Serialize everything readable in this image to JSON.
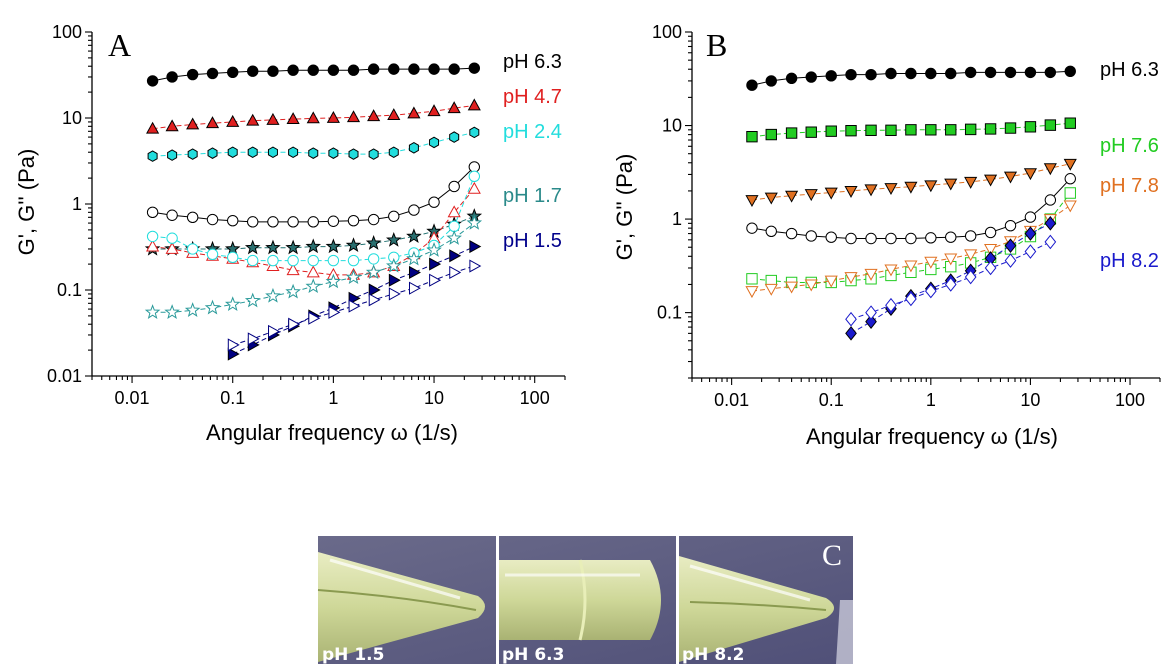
{
  "panels": [
    {
      "label": "A",
      "xlabel": "Angular frequency ω (1/s)",
      "ylabel": "G', G'' (Pa)"
    },
    {
      "label": "B",
      "xlabel": "Angular frequency ω (1/s)",
      "ylabel": "G', G'' (Pa)"
    }
  ],
  "chart_data": [
    {
      "type": "scatter",
      "panel": "A",
      "xlabel": "Angular frequency ω (1/s)",
      "ylabel": "G', G'' (Pa)",
      "xscale": "log",
      "yscale": "log",
      "xlim": [
        0.004,
        200
      ],
      "ylim": [
        0.01,
        100
      ],
      "xticks": [
        "0.01",
        "0.1",
        "1",
        "10",
        "100"
      ],
      "yticks": [
        "0.01",
        "0.1",
        "1",
        "10",
        "100"
      ],
      "grid": false,
      "legend": "series labels at right end of each curve",
      "series": [
        {
          "name": "pH 6.3",
          "color": "#000000",
          "marker": "circle",
          "filled": true,
          "label_color": "#000000",
          "x": [
            0.016,
            0.025,
            0.04,
            0.063,
            0.1,
            0.158,
            0.251,
            0.398,
            0.631,
            1.0,
            1.585,
            2.512,
            3.981,
            6.31,
            10.0,
            15.85,
            25.12
          ],
          "y": [
            27,
            30,
            32,
            33,
            34,
            35,
            35,
            36,
            36,
            36,
            36,
            37,
            37,
            37,
            37,
            37,
            38
          ]
        },
        {
          "name": "pH 4.7",
          "color": "#e02020",
          "marker": "triangle-up",
          "filled": true,
          "label_color": "#e02020",
          "x": [
            0.016,
            0.025,
            0.04,
            0.063,
            0.1,
            0.158,
            0.251,
            0.398,
            0.631,
            1.0,
            1.585,
            2.512,
            3.981,
            6.31,
            10.0,
            15.85,
            25.12
          ],
          "y": [
            7.5,
            8.0,
            8.4,
            8.7,
            9.0,
            9.3,
            9.5,
            9.7,
            9.9,
            10.0,
            10.2,
            10.5,
            10.8,
            11.3,
            12.0,
            13.0,
            14.0
          ]
        },
        {
          "name": "pH 2.4",
          "color": "#22dddd",
          "marker": "hexagon",
          "filled": true,
          "label_color": "#22dddd",
          "x": [
            0.016,
            0.025,
            0.04,
            0.063,
            0.1,
            0.158,
            0.251,
            0.398,
            0.631,
            1.0,
            1.585,
            2.512,
            3.981,
            6.31,
            10.0,
            15.85,
            25.12
          ],
          "y": [
            3.6,
            3.7,
            3.8,
            3.9,
            4.0,
            4.0,
            4.0,
            4.0,
            3.9,
            3.9,
            3.8,
            3.8,
            4.0,
            4.5,
            5.2,
            6.0,
            6.8
          ]
        },
        {
          "name": "pH 6.3 G''",
          "color": "#000000",
          "marker": "circle",
          "filled": false,
          "x": [
            0.016,
            0.025,
            0.04,
            0.063,
            0.1,
            0.158,
            0.251,
            0.398,
            0.631,
            1.0,
            1.585,
            2.512,
            3.981,
            6.31,
            10.0,
            15.85,
            25.12
          ],
          "y": [
            0.8,
            0.74,
            0.7,
            0.66,
            0.64,
            0.62,
            0.62,
            0.62,
            0.62,
            0.63,
            0.64,
            0.66,
            0.72,
            0.85,
            1.05,
            1.6,
            2.7
          ]
        },
        {
          "name": "pH 1.7",
          "color": "#207070",
          "fill": "#2a6f6f",
          "marker": "star",
          "filled": true,
          "label_color": "#2a8a8a",
          "x": [
            0.016,
            0.025,
            0.04,
            0.063,
            0.1,
            0.158,
            0.251,
            0.398,
            0.631,
            1.0,
            1.585,
            2.512,
            3.981,
            6.31,
            10.0,
            15.85,
            25.12
          ],
          "y": [
            0.3,
            0.3,
            0.3,
            0.3,
            0.3,
            0.31,
            0.31,
            0.31,
            0.32,
            0.32,
            0.33,
            0.35,
            0.38,
            0.42,
            0.48,
            0.58,
            0.72
          ]
        },
        {
          "name": "pH 1.5",
          "color": "#000080",
          "marker": "triangle-right",
          "filled": true,
          "label_color": "#00008b",
          "x": [
            0.1,
            0.158,
            0.251,
            0.398,
            0.631,
            1.0,
            1.585,
            2.512,
            3.981,
            6.31,
            10.0,
            15.85,
            25.12
          ],
          "y": [
            0.018,
            0.023,
            0.03,
            0.038,
            0.05,
            0.062,
            0.08,
            0.1,
            0.13,
            0.16,
            0.2,
            0.25,
            0.32
          ]
        },
        {
          "name": "pH 4.7 G''",
          "color": "#e02020",
          "marker": "triangle-up",
          "filled": false,
          "x": [
            0.016,
            0.025,
            0.04,
            0.063,
            0.1,
            0.158,
            0.251,
            0.398,
            0.631,
            1.0,
            1.585,
            2.512,
            3.981,
            6.31,
            10.0,
            15.85,
            25.12
          ],
          "y": [
            0.32,
            0.3,
            0.27,
            0.25,
            0.23,
            0.21,
            0.19,
            0.17,
            0.16,
            0.15,
            0.15,
            0.16,
            0.19,
            0.26,
            0.4,
            0.8,
            1.5
          ]
        },
        {
          "name": "pH 2.4 G''",
          "color": "#22dddd",
          "marker": "circle",
          "filled": false,
          "x": [
            0.016,
            0.025,
            0.04,
            0.063,
            0.1,
            0.158,
            0.251,
            0.398,
            0.631,
            1.0,
            1.585,
            2.512,
            3.981,
            6.31,
            10.0,
            15.85,
            25.12
          ],
          "y": [
            0.42,
            0.4,
            0.3,
            0.26,
            0.24,
            0.22,
            0.22,
            0.22,
            0.22,
            0.22,
            0.22,
            0.23,
            0.24,
            0.27,
            0.33,
            0.55,
            2.1
          ]
        },
        {
          "name": "pH 1.7 G''",
          "color": "#2a9a9a",
          "marker": "star",
          "filled": false,
          "x": [
            0.016,
            0.025,
            0.04,
            0.063,
            0.1,
            0.158,
            0.251,
            0.398,
            0.631,
            1.0,
            1.585,
            2.512,
            3.981,
            6.31,
            10.0,
            15.85,
            25.12
          ],
          "y": [
            0.055,
            0.055,
            0.058,
            0.062,
            0.068,
            0.075,
            0.085,
            0.095,
            0.11,
            0.125,
            0.14,
            0.16,
            0.19,
            0.23,
            0.29,
            0.4,
            0.6
          ]
        },
        {
          "name": "pH 1.5 G''",
          "color": "#000080",
          "marker": "triangle-right",
          "filled": false,
          "x": [
            0.1,
            0.158,
            0.251,
            0.398,
            0.631,
            1.0,
            1.585,
            2.512,
            3.981,
            6.31,
            10.0,
            15.85,
            25.12
          ],
          "y": [
            0.023,
            0.027,
            0.033,
            0.04,
            0.047,
            0.055,
            0.065,
            0.077,
            0.09,
            0.105,
            0.13,
            0.16,
            0.19
          ]
        }
      ]
    },
    {
      "type": "scatter",
      "panel": "B",
      "xlabel": "Angular frequency ω (1/s)",
      "ylabel": "G', G'' (Pa)",
      "xscale": "log",
      "yscale": "log",
      "xlim": [
        0.004,
        200
      ],
      "ylim": [
        0.02,
        100
      ],
      "xticks": [
        "0.01",
        "0.1",
        "1",
        "10",
        "100"
      ],
      "yticks": [
        "0.1",
        "1",
        "10",
        "100"
      ],
      "grid": false,
      "legend": "series labels at right end of each curve",
      "series": [
        {
          "name": "pH 6.3",
          "color": "#000000",
          "marker": "circle",
          "filled": true,
          "label_color": "#000000",
          "x": [
            0.016,
            0.025,
            0.04,
            0.063,
            0.1,
            0.158,
            0.251,
            0.398,
            0.631,
            1.0,
            1.585,
            2.512,
            3.981,
            6.31,
            10.0,
            15.85,
            25.12
          ],
          "y": [
            27,
            30,
            32,
            33,
            34,
            35,
            35,
            36,
            36,
            36,
            36,
            37,
            37,
            37,
            37,
            37,
            38
          ]
        },
        {
          "name": "pH 7.6",
          "color": "#22cc22",
          "marker": "square",
          "filled": true,
          "label_color": "#22cc22",
          "x": [
            0.016,
            0.025,
            0.04,
            0.063,
            0.1,
            0.158,
            0.251,
            0.398,
            0.631,
            1.0,
            1.585,
            2.512,
            3.981,
            6.31,
            10.0,
            15.85,
            25.12
          ],
          "y": [
            7.6,
            8.0,
            8.3,
            8.5,
            8.7,
            8.8,
            8.9,
            8.9,
            9.0,
            9.0,
            9.0,
            9.1,
            9.2,
            9.4,
            9.7,
            10.1,
            10.6
          ]
        },
        {
          "name": "pH 7.8",
          "color": "#e07020",
          "marker": "triangle-down",
          "filled": true,
          "label_color": "#e07020",
          "x": [
            0.016,
            0.025,
            0.04,
            0.063,
            0.1,
            0.158,
            0.251,
            0.398,
            0.631,
            1.0,
            1.585,
            2.512,
            3.981,
            6.31,
            10.0,
            15.85,
            25.12
          ],
          "y": [
            1.6,
            1.7,
            1.78,
            1.85,
            1.92,
            2.0,
            2.08,
            2.15,
            2.22,
            2.3,
            2.4,
            2.5,
            2.65,
            2.85,
            3.1,
            3.5,
            3.9
          ]
        },
        {
          "name": "pH 6.3 G''",
          "color": "#000000",
          "marker": "circle",
          "filled": false,
          "x": [
            0.016,
            0.025,
            0.04,
            0.063,
            0.1,
            0.158,
            0.251,
            0.398,
            0.631,
            1.0,
            1.585,
            2.512,
            3.981,
            6.31,
            10.0,
            15.85,
            25.12
          ],
          "y": [
            0.8,
            0.74,
            0.7,
            0.66,
            0.64,
            0.62,
            0.62,
            0.62,
            0.62,
            0.63,
            0.64,
            0.66,
            0.72,
            0.85,
            1.05,
            1.6,
            2.7
          ]
        },
        {
          "name": "pH 7.6 G''",
          "color": "#22cc22",
          "marker": "square",
          "filled": false,
          "x": [
            0.016,
            0.025,
            0.04,
            0.063,
            0.1,
            0.158,
            0.251,
            0.398,
            0.631,
            1.0,
            1.585,
            2.512,
            3.981,
            6.31,
            10.0,
            15.85,
            25.12
          ],
          "y": [
            0.23,
            0.22,
            0.21,
            0.21,
            0.21,
            0.22,
            0.23,
            0.25,
            0.27,
            0.29,
            0.31,
            0.34,
            0.39,
            0.48,
            0.65,
            1.0,
            1.9
          ]
        },
        {
          "name": "pH 7.8 G''",
          "color": "#e07020",
          "marker": "triangle-down",
          "filled": false,
          "x": [
            0.016,
            0.025,
            0.04,
            0.063,
            0.1,
            0.158,
            0.251,
            0.398,
            0.631,
            1.0,
            1.585,
            2.512,
            3.981,
            6.31,
            10.0,
            15.85,
            25.12
          ],
          "y": [
            0.17,
            0.18,
            0.19,
            0.2,
            0.22,
            0.24,
            0.26,
            0.29,
            0.32,
            0.35,
            0.38,
            0.42,
            0.48,
            0.58,
            0.75,
            1.0,
            1.4
          ]
        },
        {
          "name": "pH 8.2",
          "color": "#1a1acc",
          "marker": "diamond",
          "filled": true,
          "label_color": "#1a1acc",
          "x": [
            0.158,
            0.251,
            0.398,
            0.631,
            1.0,
            1.585,
            2.512,
            3.981,
            6.31,
            10.0,
            15.85
          ],
          "y": [
            0.06,
            0.08,
            0.11,
            0.15,
            0.18,
            0.22,
            0.28,
            0.38,
            0.52,
            0.7,
            0.9
          ]
        },
        {
          "name": "pH 8.2 G''",
          "color": "#1a1acc",
          "marker": "diamond",
          "filled": false,
          "x": [
            0.158,
            0.251,
            0.398,
            0.631,
            1.0,
            1.585,
            2.512,
            3.981,
            6.31,
            10.0,
            15.85
          ],
          "y": [
            0.085,
            0.1,
            0.12,
            0.14,
            0.17,
            0.2,
            0.24,
            0.3,
            0.36,
            0.45,
            0.57
          ]
        }
      ]
    }
  ],
  "photo": {
    "panel_label": "C",
    "labels": [
      "pH 1.5",
      "pH 6.3",
      "pH 8.2"
    ]
  }
}
